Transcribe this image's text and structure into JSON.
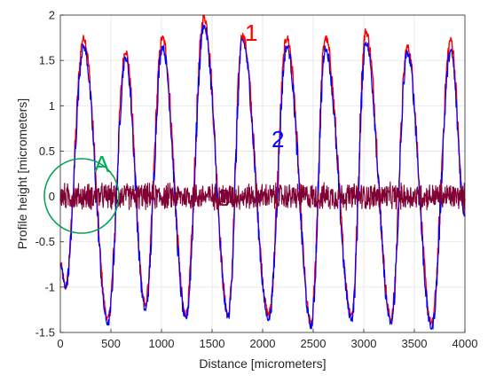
{
  "chart_data": {
    "type": "line",
    "xlabel": "Distance [micrometers]",
    "ylabel": "Profile height [micrometers]",
    "xlim": [
      0,
      4000
    ],
    "ylim": [
      -1.5,
      2
    ],
    "x_ticks": [
      "0",
      "500",
      "1000",
      "1500",
      "2000",
      "2500",
      "3000",
      "3500",
      "4000"
    ],
    "y_ticks": [
      "-1.5",
      "-1",
      "-0.5",
      "0",
      "0.5",
      "1",
      "1.5",
      "2"
    ],
    "grid": true,
    "period": 420,
    "series": [
      {
        "name": "1",
        "color": "#ff0000",
        "peaks": [
          {
            "x": 230,
            "y": 1.75
          },
          {
            "x": 645,
            "y": 1.6
          },
          {
            "x": 1010,
            "y": 1.75
          },
          {
            "x": 1420,
            "y": 1.98
          },
          {
            "x": 1800,
            "y": 1.78
          },
          {
            "x": 2240,
            "y": 1.75
          },
          {
            "x": 2620,
            "y": 1.75
          },
          {
            "x": 3020,
            "y": 1.82
          },
          {
            "x": 3430,
            "y": 1.65
          },
          {
            "x": 3860,
            "y": 1.73
          }
        ],
        "troughs": [
          {
            "x": 50,
            "y": -1.0
          },
          {
            "x": 470,
            "y": -1.35
          },
          {
            "x": 840,
            "y": -1.2
          },
          {
            "x": 1240,
            "y": -1.3
          },
          {
            "x": 1660,
            "y": -1.3
          },
          {
            "x": 2060,
            "y": -1.3
          },
          {
            "x": 2480,
            "y": -1.4
          },
          {
            "x": 2880,
            "y": -1.3
          },
          {
            "x": 3270,
            "y": -1.35
          },
          {
            "x": 3670,
            "y": -1.4
          }
        ]
      },
      {
        "name": "2",
        "color": "#0000ff",
        "peaks": [
          {
            "x": 230,
            "y": 1.65
          },
          {
            "x": 645,
            "y": 1.52
          },
          {
            "x": 1010,
            "y": 1.65
          },
          {
            "x": 1420,
            "y": 1.88
          },
          {
            "x": 1800,
            "y": 1.72
          },
          {
            "x": 2240,
            "y": 1.65
          },
          {
            "x": 2620,
            "y": 1.63
          },
          {
            "x": 3020,
            "y": 1.7
          },
          {
            "x": 3430,
            "y": 1.58
          },
          {
            "x": 3860,
            "y": 1.6
          }
        ],
        "troughs": [
          {
            "x": 50,
            "y": -1.0
          },
          {
            "x": 470,
            "y": -1.4
          },
          {
            "x": 840,
            "y": -1.25
          },
          {
            "x": 1240,
            "y": -1.35
          },
          {
            "x": 1660,
            "y": -1.32
          },
          {
            "x": 2060,
            "y": -1.35
          },
          {
            "x": 2480,
            "y": -1.43
          },
          {
            "x": 2880,
            "y": -1.35
          },
          {
            "x": 3270,
            "y": -1.4
          },
          {
            "x": 3670,
            "y": -1.45
          }
        ]
      },
      {
        "name": "3",
        "color": "#800033",
        "description_level": 0,
        "amplitude": 0.17
      }
    ],
    "annotations": [
      {
        "text": "1",
        "color": "#ff0000"
      },
      {
        "text": "2",
        "color": "#0000ff"
      },
      {
        "text": "3",
        "color": "#800033"
      },
      {
        "text": "A",
        "color": "#00b050"
      }
    ]
  }
}
